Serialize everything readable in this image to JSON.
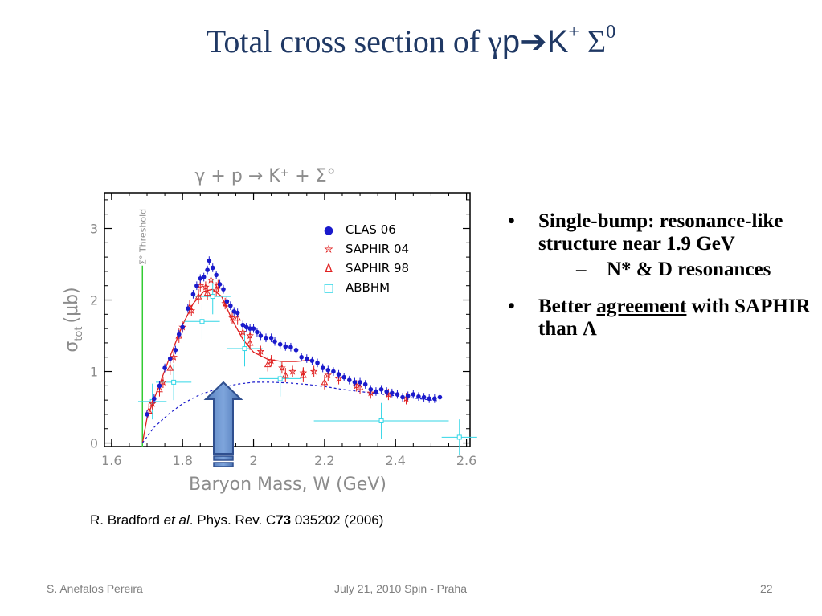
{
  "slide": {
    "title_prefix": "Total cross section of ",
    "title_gamma": "γ",
    "title_p": "p",
    "title_arrow": "➔",
    "title_K": "K",
    "title_K_sup": "+",
    "title_sigma": " Σ",
    "title_sigma_sup": "0",
    "bullets": [
      {
        "text": "Single-bump: resonance-like structure near 1.9 GeV",
        "sub": [
          "N* & D resonances"
        ]
      },
      {
        "text_pre": "Better ",
        "text_underline": "agreement",
        "text_post": " with SAPHIR than Λ"
      }
    ],
    "citation": {
      "pre": "R. Bradford ",
      "etal": "et al",
      "mid": ". Phys. Rev. C",
      "vol": "73",
      "post": " 035202 (2006)"
    },
    "footer": {
      "author": "S. Anefalos Pereira",
      "date": "July 21, 2010 Spin - Praha",
      "page": "22"
    }
  },
  "chart_data": {
    "type": "scatter",
    "title": "γ + p → K⁺ + Σ°",
    "xlabel": "Baryon Mass, W (GeV)",
    "ylabel_sigma": "σ",
    "ylabel_sub": "tot",
    "ylabel_unit": "(μb)",
    "xlim": [
      1.58,
      2.61
    ],
    "ylim": [
      -0.05,
      3.5
    ],
    "xticks": [
      1.6,
      1.8,
      2.0,
      2.2,
      2.4,
      2.6
    ],
    "xtick_labels": [
      "1.6",
      "1.8",
      "2",
      "2.2",
      "2.4",
      "2.6"
    ],
    "yticks": [
      0,
      1,
      2,
      3
    ],
    "ytick_labels": [
      "0",
      "1",
      "2",
      "3"
    ],
    "grid": false,
    "legend_placement": "top-right",
    "threshold": {
      "x": 1.687,
      "label": "Σ° Threshold",
      "color": "#33cc33"
    },
    "legend": [
      {
        "marker": "●",
        "label": "CLAS 06",
        "color": "#1a1acc"
      },
      {
        "marker": "✮",
        "label": "SAPHIR 04",
        "color": "#e02020"
      },
      {
        "marker": "Δ",
        "label": "SAPHIR 98",
        "color": "#e02020"
      },
      {
        "marker": "□",
        "label": "ABBHM",
        "color": "#33d6e6"
      }
    ],
    "series": [
      {
        "name": "CLAS 06",
        "color": "#1a1acc",
        "points": [
          [
            1.7,
            0.4
          ],
          [
            1.72,
            0.62
          ],
          [
            1.735,
            0.8
          ],
          [
            1.75,
            1.05
          ],
          [
            1.765,
            1.18
          ],
          [
            1.78,
            1.3
          ],
          [
            1.79,
            1.52
          ],
          [
            1.8,
            1.62
          ],
          [
            1.815,
            1.88
          ],
          [
            1.83,
            2.08
          ],
          [
            1.84,
            2.2
          ],
          [
            1.85,
            2.3
          ],
          [
            1.86,
            2.32
          ],
          [
            1.87,
            2.42
          ],
          [
            1.875,
            2.55
          ],
          [
            1.885,
            2.45
          ],
          [
            1.895,
            2.35
          ],
          [
            1.905,
            2.22
          ],
          [
            1.915,
            2.15
          ],
          [
            1.925,
            1.98
          ],
          [
            1.935,
            1.92
          ],
          [
            1.945,
            1.84
          ],
          [
            1.955,
            1.82
          ],
          [
            1.97,
            1.65
          ],
          [
            1.98,
            1.62
          ],
          [
            1.99,
            1.6
          ],
          [
            2.0,
            1.6
          ],
          [
            2.01,
            1.55
          ],
          [
            2.02,
            1.5
          ],
          [
            2.035,
            1.47
          ],
          [
            2.05,
            1.47
          ],
          [
            2.06,
            1.42
          ],
          [
            2.075,
            1.38
          ],
          [
            2.09,
            1.35
          ],
          [
            2.105,
            1.34
          ],
          [
            2.12,
            1.3
          ],
          [
            2.135,
            1.2
          ],
          [
            2.15,
            1.18
          ],
          [
            2.165,
            1.15
          ],
          [
            2.18,
            1.12
          ],
          [
            2.195,
            1.05
          ],
          [
            2.21,
            1.02
          ],
          [
            2.225,
            1.0
          ],
          [
            2.24,
            0.96
          ],
          [
            2.255,
            0.92
          ],
          [
            2.27,
            0.88
          ],
          [
            2.285,
            0.85
          ],
          [
            2.3,
            0.85
          ],
          [
            2.315,
            0.82
          ],
          [
            2.33,
            0.75
          ],
          [
            2.345,
            0.72
          ],
          [
            2.36,
            0.75
          ],
          [
            2.375,
            0.72
          ],
          [
            2.39,
            0.7
          ],
          [
            2.405,
            0.68
          ],
          [
            2.42,
            0.64
          ],
          [
            2.435,
            0.66
          ],
          [
            2.45,
            0.68
          ],
          [
            2.465,
            0.65
          ],
          [
            2.48,
            0.64
          ],
          [
            2.495,
            0.62
          ],
          [
            2.51,
            0.62
          ],
          [
            2.525,
            0.64
          ]
        ]
      },
      {
        "name": "SAPHIR 04",
        "color": "#e02020",
        "points": [
          [
            1.715,
            0.55
          ],
          [
            1.745,
            0.85
          ],
          [
            1.775,
            1.2
          ],
          [
            1.8,
            1.62
          ],
          [
            1.825,
            1.85
          ],
          [
            1.85,
            2.2
          ],
          [
            1.865,
            2.18
          ],
          [
            1.88,
            2.28
          ],
          [
            1.9,
            2.2
          ],
          [
            1.92,
            1.95
          ],
          [
            1.94,
            1.75
          ],
          [
            1.97,
            1.55
          ],
          [
            1.99,
            1.5
          ],
          [
            2.02,
            1.28
          ],
          [
            2.05,
            1.15
          ],
          [
            2.08,
            1.05
          ],
          [
            2.11,
            1.0
          ],
          [
            2.14,
            0.98
          ],
          [
            2.17,
            1.0
          ],
          [
            2.21,
            0.95
          ],
          [
            2.24,
            0.9
          ],
          [
            2.29,
            0.8
          ],
          [
            2.33,
            0.7
          ],
          [
            2.38,
            0.68
          ],
          [
            2.43,
            0.62
          ]
        ]
      },
      {
        "name": "SAPHIR 98",
        "color": "#e02020",
        "points": [
          [
            1.705,
            0.45
          ],
          [
            1.735,
            0.75
          ],
          [
            1.765,
            1.05
          ],
          [
            1.79,
            1.5
          ],
          [
            1.82,
            1.9
          ],
          [
            1.845,
            2.05
          ],
          [
            1.87,
            2.1
          ],
          [
            1.895,
            2.15
          ],
          [
            1.925,
            1.95
          ],
          [
            1.955,
            1.75
          ],
          [
            1.99,
            1.4
          ],
          [
            2.04,
            1.1
          ],
          [
            2.09,
            0.95
          ],
          [
            2.14,
            0.95
          ],
          [
            2.2,
            0.85
          ],
          [
            2.3,
            0.78
          ]
        ]
      },
      {
        "name": "ABBHM",
        "color": "#33d6e6",
        "points": [
          [
            1.715,
            0.58,
            0.04
          ],
          [
            1.775,
            0.85,
            0.05
          ],
          [
            1.855,
            1.7,
            0.05
          ],
          [
            1.885,
            2.05,
            0.05
          ],
          [
            1.975,
            1.32,
            0.05
          ],
          [
            2.075,
            0.9,
            0.06
          ],
          [
            2.36,
            0.31,
            0.19
          ],
          [
            2.58,
            0.08,
            0.05
          ]
        ]
      }
    ],
    "fit_curve": [
      [
        1.687,
        0.0
      ],
      [
        1.7,
        0.35
      ],
      [
        1.73,
        0.75
      ],
      [
        1.76,
        1.15
      ],
      [
        1.8,
        1.65
      ],
      [
        1.83,
        1.95
      ],
      [
        1.86,
        2.12
      ],
      [
        1.885,
        2.15
      ],
      [
        1.91,
        2.05
      ],
      [
        1.94,
        1.72
      ],
      [
        1.97,
        1.45
      ],
      [
        2.0,
        1.27
      ],
      [
        2.04,
        1.17
      ],
      [
        2.08,
        1.14
      ],
      [
        2.12,
        1.14
      ],
      [
        2.16,
        1.16
      ]
    ],
    "background_curve": [
      [
        1.687,
        0.0
      ],
      [
        1.72,
        0.22
      ],
      [
        1.76,
        0.4
      ],
      [
        1.8,
        0.55
      ],
      [
        1.85,
        0.68
      ],
      [
        1.9,
        0.76
      ],
      [
        1.95,
        0.82
      ],
      [
        2.0,
        0.85
      ],
      [
        2.05,
        0.85
      ],
      [
        2.1,
        0.84
      ],
      [
        2.15,
        0.82
      ],
      [
        2.2,
        0.79
      ],
      [
        2.25,
        0.75
      ],
      [
        2.3,
        0.72
      ],
      [
        2.35,
        0.69
      ],
      [
        2.4,
        0.66
      ],
      [
        2.45,
        0.63
      ],
      [
        2.5,
        0.6
      ],
      [
        2.52,
        0.59
      ]
    ]
  }
}
